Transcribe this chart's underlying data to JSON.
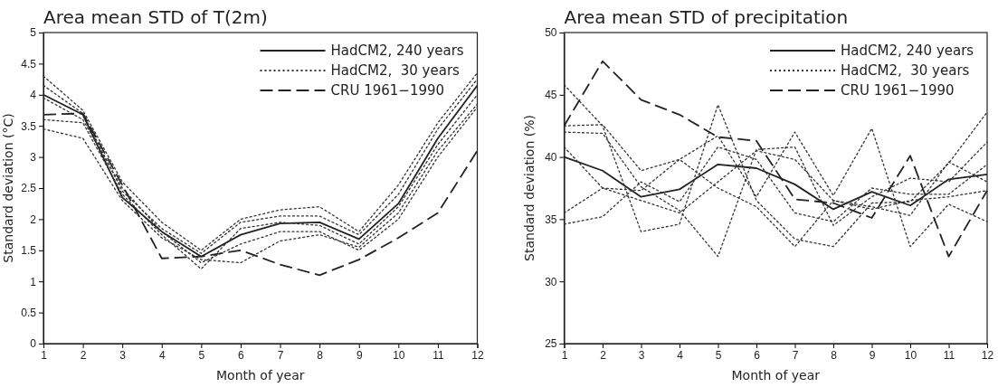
{
  "chart_data": [
    {
      "type": "line",
      "title": "Area mean STD of T(2m)",
      "xlabel": "Month of year",
      "ylabel": "Standard deviation (°C)",
      "x": [
        1,
        2,
        3,
        4,
        5,
        6,
        7,
        8,
        9,
        10,
        11,
        12
      ],
      "xlim": [
        1,
        12
      ],
      "xticks": [
        1,
        2,
        3,
        4,
        5,
        6,
        7,
        8,
        9,
        10,
        11,
        12
      ],
      "ylim": [
        0,
        5
      ],
      "yticks": [
        0,
        0.5,
        1,
        1.5,
        2,
        2.5,
        3,
        3.5,
        4,
        4.5,
        5
      ],
      "legend": "top right",
      "series": [
        {
          "name": "HadCM2, 240 years",
          "color": "#222222",
          "line_style": "solid",
          "values": [
            4.0,
            3.68,
            2.35,
            1.8,
            1.4,
            1.75,
            1.93,
            1.95,
            1.68,
            2.25,
            3.3,
            4.15
          ]
        },
        {
          "name": "HadCM2,  30 years",
          "color": "#333333",
          "line_style": "dotted",
          "values": [
            4.3,
            3.75,
            2.6,
            1.95,
            1.5,
            2.0,
            2.15,
            2.2,
            1.8,
            2.55,
            3.55,
            4.35
          ]
        },
        {
          "color": "#333333",
          "line_style": "dotted",
          "values": [
            4.15,
            3.7,
            2.45,
            1.85,
            1.45,
            1.95,
            2.05,
            2.05,
            1.75,
            2.4,
            3.45,
            4.25
          ]
        },
        {
          "color": "#333333",
          "line_style": "dotted",
          "values": [
            3.6,
            3.55,
            2.4,
            1.75,
            1.2,
            1.85,
            1.95,
            1.9,
            1.6,
            2.2,
            3.2,
            4.0
          ]
        },
        {
          "color": "#333333",
          "line_style": "dotted",
          "values": [
            3.45,
            3.3,
            2.3,
            1.7,
            1.35,
            1.3,
            1.65,
            1.75,
            1.55,
            2.1,
            3.1,
            3.85
          ]
        },
        {
          "color": "#333333",
          "line_style": "dotted",
          "values": [
            3.95,
            3.6,
            2.5,
            1.8,
            1.3,
            1.6,
            1.8,
            1.8,
            1.5,
            2.0,
            3.0,
            3.8
          ]
        },
        {
          "name": "CRU 1961−1990",
          "color": "#222222",
          "line_style": "dashed",
          "values": [
            3.68,
            3.7,
            2.55,
            1.37,
            1.4,
            1.5,
            1.27,
            1.1,
            1.35,
            1.7,
            2.1,
            3.1
          ]
        }
      ]
    },
    {
      "type": "line",
      "title": "Area mean STD of precipitation",
      "xlabel": "Month of year",
      "ylabel": "Standard deviation (%)",
      "x": [
        1,
        2,
        3,
        4,
        5,
        6,
        7,
        8,
        9,
        10,
        11,
        12
      ],
      "xlim": [
        1,
        12
      ],
      "xticks": [
        1,
        2,
        3,
        4,
        5,
        6,
        7,
        8,
        9,
        10,
        11,
        12
      ],
      "ylim": [
        25,
        50
      ],
      "yticks": [
        25,
        30,
        35,
        40,
        45,
        50
      ],
      "legend": "top right",
      "series": [
        {
          "name": "HadCM2, 240 years",
          "color": "#222222",
          "line_style": "solid",
          "values": [
            40.0,
            38.9,
            36.8,
            37.4,
            39.4,
            39.1,
            37.8,
            35.8,
            37.2,
            36.1,
            38.2,
            38.6
          ]
        },
        {
          "name": "HadCM2,  30 years",
          "color": "#333333",
          "line_style": "dotted",
          "values": [
            45.8,
            42.5,
            34.0,
            34.6,
            44.2,
            36.5,
            33.4,
            32.8,
            36.3,
            36.4,
            39.5,
            43.6
          ]
        },
        {
          "color": "#333333",
          "line_style": "dotted",
          "values": [
            42.5,
            42.6,
            38.9,
            39.8,
            41.7,
            36.8,
            42.0,
            36.9,
            42.3,
            32.8,
            36.2,
            34.8
          ]
        },
        {
          "color": "#333333",
          "line_style": "dotted",
          "values": [
            42.0,
            41.9,
            37.6,
            35.7,
            32.0,
            40.6,
            40.8,
            34.5,
            36.8,
            38.3,
            38.0,
            41.2
          ]
        },
        {
          "color": "#333333",
          "line_style": "dotted",
          "values": [
            35.5,
            37.5,
            37.3,
            39.8,
            37.5,
            36.0,
            32.8,
            36.5,
            36.0,
            35.3,
            39.6,
            38.0
          ]
        },
        {
          "color": "#333333",
          "line_style": "dotted",
          "values": [
            34.6,
            35.2,
            38.0,
            36.4,
            40.8,
            39.8,
            35.5,
            34.8,
            37.5,
            37.0,
            37.0,
            39.4
          ]
        },
        {
          "color": "#333333",
          "line_style": "dotted",
          "values": [
            40.8,
            37.5,
            36.5,
            35.5,
            38.0,
            40.5,
            39.8,
            36.5,
            35.8,
            36.5,
            36.8,
            37.3
          ]
        },
        {
          "name": "CRU 1961−1990",
          "color": "#222222",
          "line_style": "dashed",
          "values": [
            42.5,
            47.7,
            44.6,
            43.4,
            41.6,
            41.3,
            36.6,
            36.3,
            35.1,
            40.1,
            32.0,
            37.3
          ]
        }
      ]
    }
  ]
}
